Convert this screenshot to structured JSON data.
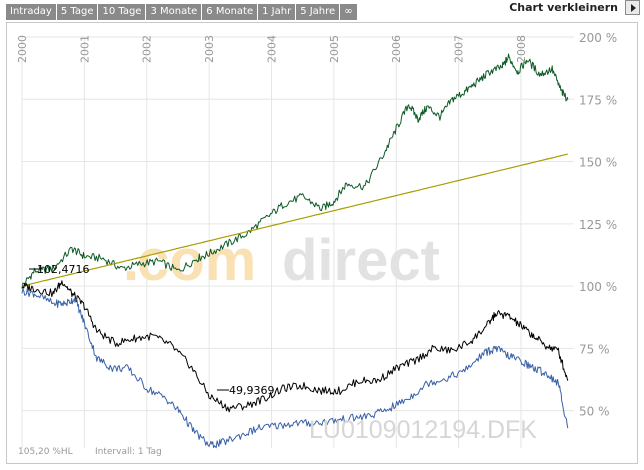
{
  "toolbar": {
    "tabs": [
      "Intraday",
      "5 Tage",
      "10 Tage",
      "3 Monate",
      "6 Monate",
      "1 Jahr",
      "5 Jahre",
      "∞"
    ],
    "shrink_label": "Chart verkleinern",
    "shrink_icon": "triangle-right-icon"
  },
  "chart": {
    "watermark": ".comdirect",
    "fund_id": "LU0109012194.DFK",
    "annotations": {
      "start_value": "102,4716",
      "low_value": "49,9369"
    },
    "footer": {
      "current_value": "105,20 %HL",
      "interval": "Intervall: 1 Tag"
    },
    "colors": {
      "green_series": "#0d5a26",
      "olive_series": "#a79d00",
      "black_series": "#000000",
      "blue_series": "#3860a8",
      "grid": "#e6e6e6",
      "axis_text": "#999999",
      "watermark_gray": "#e2e2e2",
      "watermark_orange": "#f9e1b3"
    }
  },
  "chart_data": {
    "type": "line",
    "x_tick_labels": [
      "2000",
      "2001",
      "2002",
      "2003",
      "2004",
      "2005",
      "2006",
      "2007",
      "2008"
    ],
    "y_tick_labels": [
      "200 %",
      "175 %",
      "150 %",
      "125 %",
      "100 %",
      "75 %",
      "50 %"
    ],
    "ylim": [
      35,
      200
    ],
    "xlim": [
      2000.0,
      2008.85
    ],
    "grid": true,
    "series": [
      {
        "color": "#0d5a26",
        "x": [
          2000.0,
          2000.2,
          2000.5,
          2000.8,
          2001.0,
          2001.3,
          2001.6,
          2001.9,
          2002.2,
          2002.5,
          2002.8,
          2003.0,
          2003.3,
          2003.6,
          2003.9,
          2004.2,
          2004.5,
          2004.8,
          2005.0,
          2005.2,
          2005.5,
          2005.8,
          2006.0,
          2006.2,
          2006.35,
          2006.5,
          2006.7,
          2006.9,
          2007.1,
          2007.3,
          2007.5,
          2007.7,
          2007.8,
          2007.95,
          2008.1,
          2008.3,
          2008.5,
          2008.65,
          2008.75
        ],
        "y": [
          100,
          106,
          107,
          115,
          112,
          111,
          107,
          109,
          110,
          106,
          111,
          113,
          117,
          121,
          127,
          133,
          136,
          131,
          134,
          141,
          140,
          153,
          163,
          173,
          167,
          172,
          168,
          175,
          178,
          182,
          186,
          188,
          192,
          186,
          191,
          185,
          187,
          178,
          175
        ]
      },
      {
        "color": "#a79d00",
        "x": [
          2000.0,
          2008.75
        ],
        "y": [
          100,
          153
        ]
      },
      {
        "color": "#000000",
        "x": [
          2000.0,
          2000.2,
          2000.5,
          2000.65,
          2000.8,
          2001.0,
          2001.2,
          2001.5,
          2001.8,
          2002.1,
          2002.4,
          2002.7,
          2003.0,
          2003.3,
          2003.6,
          2003.9,
          2004.2,
          2004.5,
          2004.8,
          2005.1,
          2005.4,
          2005.7,
          2006.0,
          2006.3,
          2006.6,
          2006.9,
          2007.2,
          2007.45,
          2007.6,
          2007.8,
          2008.0,
          2008.2,
          2008.4,
          2008.6,
          2008.75
        ],
        "y": [
          100,
          99,
          97,
          102,
          97,
          92,
          82,
          77,
          79,
          80,
          76,
          68,
          56,
          51,
          52,
          55,
          59,
          60,
          58,
          58,
          62,
          62,
          67,
          70,
          75,
          74,
          78,
          84,
          89,
          88,
          84,
          80,
          76,
          74,
          62
        ]
      },
      {
        "color": "#3860a8",
        "x": [
          2000.0,
          2000.2,
          2000.5,
          2000.7,
          2000.85,
          2001.0,
          2001.2,
          2001.45,
          2001.7,
          2002.0,
          2002.3,
          2002.55,
          2002.75,
          2003.0,
          2003.2,
          2003.5,
          2003.8,
          2004.1,
          2004.4,
          2004.7,
          2005.0,
          2005.3,
          2005.6,
          2005.9,
          2006.2,
          2006.5,
          2006.8,
          2007.1,
          2007.4,
          2007.6,
          2007.8,
          2008.0,
          2008.2,
          2008.4,
          2008.6,
          2008.75
        ],
        "y": [
          98,
          97,
          93,
          93,
          95,
          85,
          71,
          67,
          67,
          59,
          55,
          49,
          42,
          36,
          37,
          40,
          43,
          44,
          45,
          45,
          46,
          47,
          48,
          51,
          55,
          61,
          63,
          66,
          73,
          75,
          72,
          70,
          67,
          65,
          61,
          43
        ]
      }
    ]
  }
}
